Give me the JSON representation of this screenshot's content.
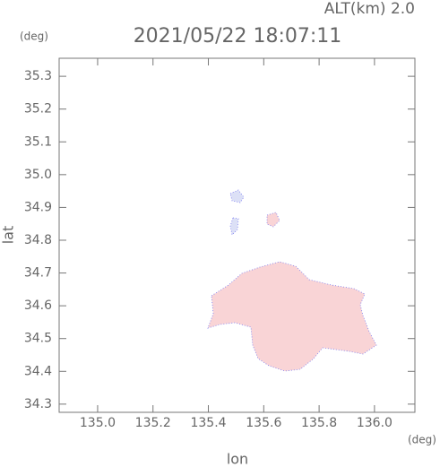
{
  "chart_data": {
    "type": "map",
    "title": "2021/05/22 18:07:11",
    "subtitle": "ALT(km) 2.0",
    "x_label": "lon",
    "x_unit": "(deg)",
    "y_label": "lat",
    "y_unit": "(deg)",
    "xlim": [
      134.861,
      136.146
    ],
    "ylim": [
      34.275,
      35.355
    ],
    "xticks": [
      {
        "value": 135,
        "label": "135.0"
      },
      135.2,
      135.4,
      135.6,
      135.8,
      {
        "value": 136,
        "label": "136.0"
      }
    ],
    "yticks": [
      34.3,
      34.4,
      34.5,
      34.6,
      34.7,
      34.8,
      34.9,
      {
        "value": 35,
        "label": "35.0"
      },
      35.1,
      35.2,
      35.3
    ]
  }
}
